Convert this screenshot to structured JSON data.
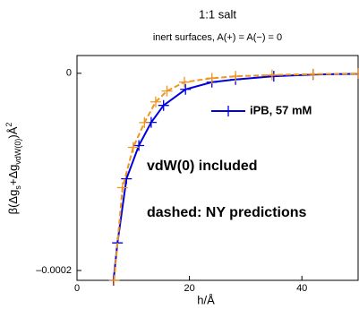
{
  "chart_data": {
    "type": "line",
    "title": "1:1 salt",
    "subtitle": "inert surfaces, A(+) = A(−) = 0",
    "xlabel": "h/Å",
    "ylabel": [
      "β(Δg",
      "s",
      "+Δg",
      "vdW(0)",
      ")Å",
      "2"
    ],
    "xlim": [
      0,
      50
    ],
    "xticks": [
      0,
      20,
      40
    ],
    "ylim": [
      -0.00021,
      1.8e-05
    ],
    "yticks": [
      {
        "value": -0.0002,
        "label": "–0.0002"
      },
      0
    ],
    "series": [
      {
        "name": "iPB, 57 mM",
        "color": "#0000dd",
        "dashed": false,
        "x": [
          6.5,
          7.2,
          8.8,
          11.0,
          13.2,
          15.4,
          19.3,
          24,
          28.2,
          35,
          42,
          50
        ],
        "values": [
          -0.00021,
          -0.000172,
          -0.000107,
          -7.33e-05,
          -4.98e-05,
          -3.26e-05,
          -1.63e-05,
          -9e-06,
          -6.3e-06,
          -3e-06,
          -1.3e-06,
          -5e-07
        ]
      },
      {
        "color": "#f0951e",
        "dashed": true,
        "x": [
          6.6,
          8.1,
          10.0,
          12,
          14.0,
          16,
          19.1,
          24,
          28.2,
          34.7,
          42,
          50
        ],
        "values": [
          -0.00021,
          -0.000116,
          -7.51e-05,
          -5e-05,
          -2.9e-05,
          -1.8e-05,
          -9e-06,
          -5e-06,
          -3e-06,
          -1.8e-06,
          -8e-07,
          -3e-07
        ]
      }
    ],
    "annotations": [
      "vdW(0) included",
      "dashed: NY predictions"
    ]
  }
}
